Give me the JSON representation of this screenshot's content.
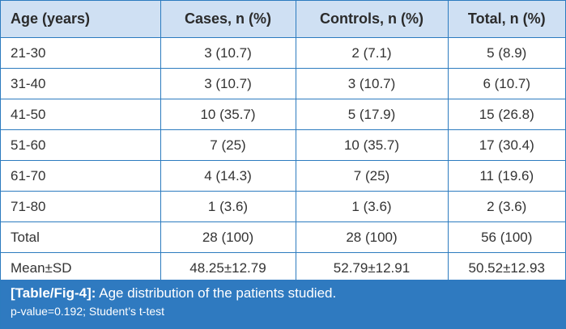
{
  "table": {
    "headers": [
      "Age (years)",
      "Cases, n (%)",
      "Controls, n (%)",
      "Total, n (%)"
    ],
    "rows": [
      [
        "21-30",
        "3 (10.7)",
        "2 (7.1)",
        "5 (8.9)"
      ],
      [
        "31-40",
        "3 (10.7)",
        "3 (10.7)",
        "6 (10.7)"
      ],
      [
        "41-50",
        "10 (35.7)",
        "5 (17.9)",
        "15 (26.8)"
      ],
      [
        "51-60",
        "7 (25)",
        "10 (35.7)",
        "17 (30.4)"
      ],
      [
        "61-70",
        "4 (14.3)",
        "7 (25)",
        "11 (19.6)"
      ],
      [
        "71-80",
        "1 (3.6)",
        "1 (3.6)",
        "2 (3.6)"
      ],
      [
        "Total",
        "28 (100)",
        "28 (100)",
        "56 (100)"
      ],
      [
        "Mean±SD",
        "48.25±12.79",
        "52.79±12.91",
        "50.52±12.93"
      ]
    ]
  },
  "caption": {
    "label": "[Table/Fig-4]:",
    "title": " Age distribution of the patients studied.",
    "note": "p-value=0.192; Student’s t-test"
  },
  "colors": {
    "header_background": "#cfe0f3",
    "border": "#2c7bbf",
    "caption_background": "#2f7ac0"
  }
}
